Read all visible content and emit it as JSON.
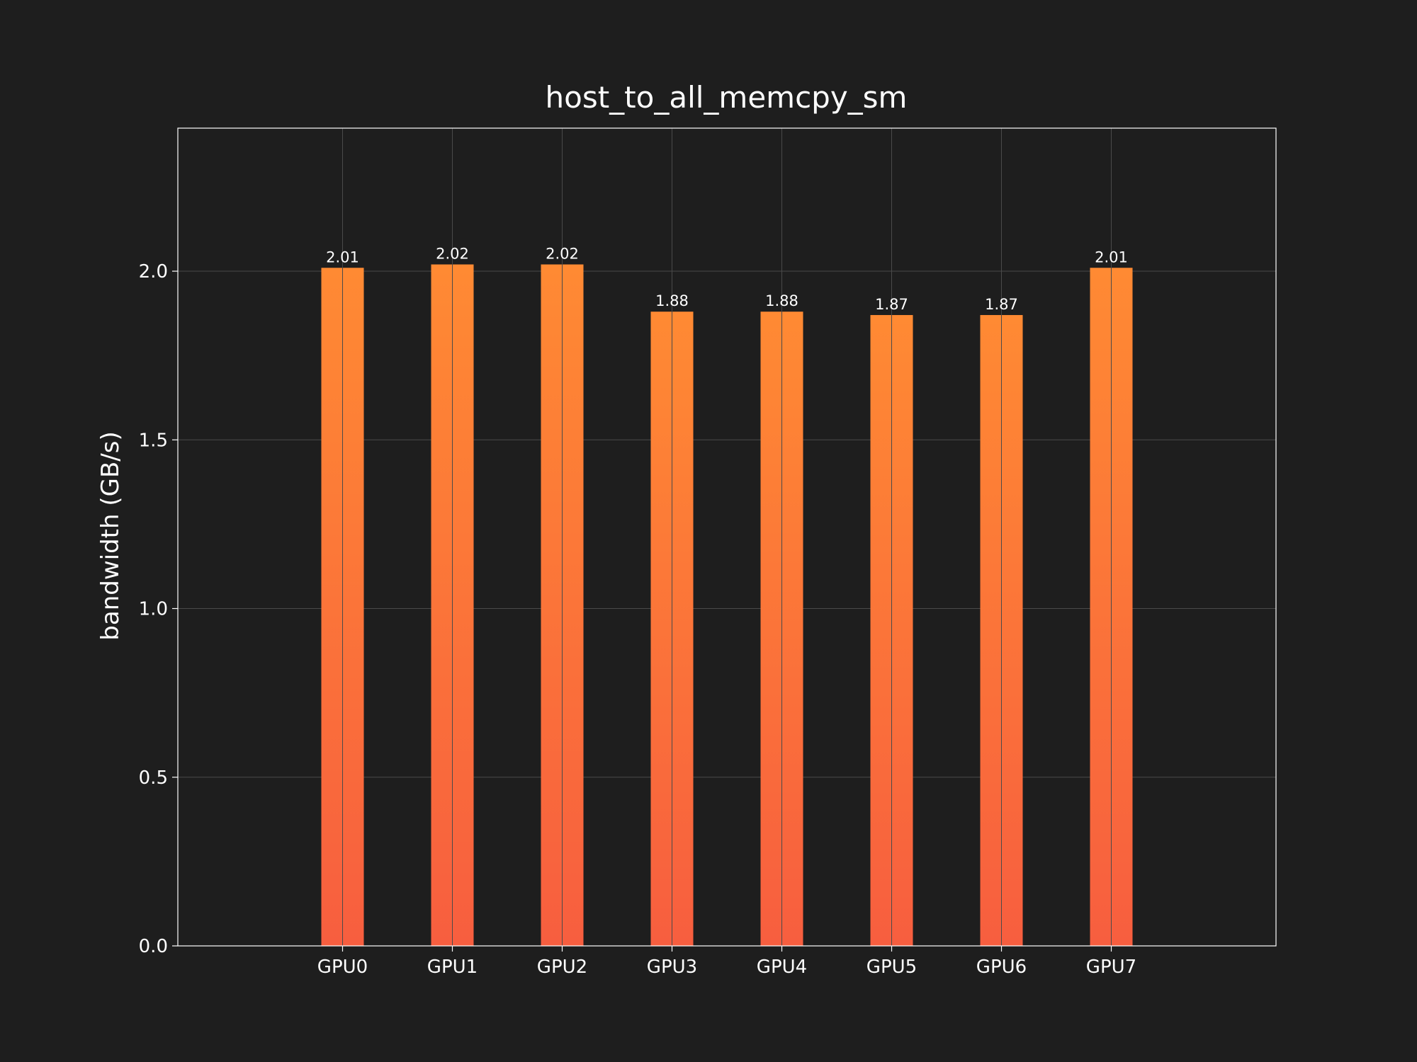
{
  "chart_data": {
    "type": "bar",
    "title": "host_to_all_memcpy_sm",
    "xlabel": "",
    "ylabel": "bandwidth (GB/s)",
    "categories": [
      "GPU0",
      "GPU1",
      "GPU2",
      "GPU3",
      "GPU4",
      "GPU5",
      "GPU6",
      "GPU7"
    ],
    "values": [
      2.01,
      2.02,
      2.02,
      1.88,
      1.88,
      1.87,
      1.87,
      2.01
    ],
    "value_labels": [
      "2.01",
      "2.02",
      "2.02",
      "1.88",
      "1.88",
      "1.87",
      "1.87",
      "2.01"
    ],
    "yticks": [
      0.0,
      0.5,
      1.0,
      1.5,
      2.0
    ],
    "ytick_labels": [
      "0.0",
      "0.5",
      "1.0",
      "1.5",
      "2.0"
    ],
    "ylim": [
      0,
      2.424
    ],
    "grid": true,
    "legend": "none",
    "colors": {
      "background": "#1e1e1e",
      "bar_top": "#ff8a33",
      "bar_bottom": "#f75e3f",
      "text": "#ffffff",
      "grid": "#4a4a4a"
    }
  }
}
